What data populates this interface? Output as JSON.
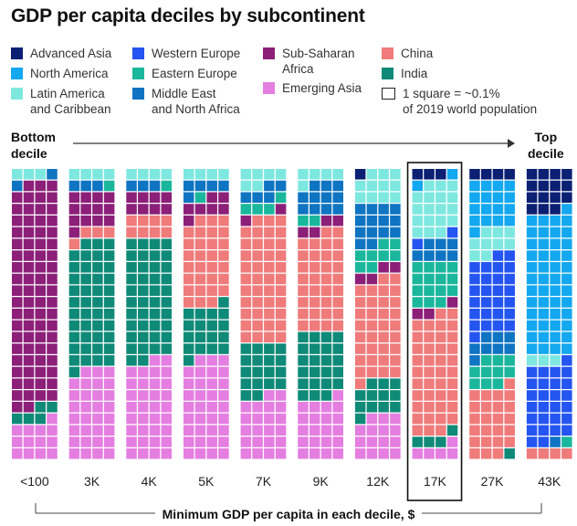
{
  "title": "GDP per capita deciles by subcontinent",
  "legend": [
    {
      "key": "A",
      "label": "Advanced Asia",
      "color": "#0b1f73"
    },
    {
      "key": "W",
      "label": "Western Europe",
      "color": "#2455f0"
    },
    {
      "key": "S",
      "label": "Sub-Saharan\nAfrica",
      "color": "#8c1f78"
    },
    {
      "key": "C",
      "label": "China",
      "color": "#ef7b7b"
    },
    {
      "key": "N",
      "label": "North America",
      "color": "#13a8ef"
    },
    {
      "key": "E",
      "label": "Eastern Europe",
      "color": "#1ab79c"
    },
    {
      "key": "I",
      "label": "India",
      "color": "#0f8a78"
    },
    {
      "key": "L",
      "label": "Latin America\nand Caribbean",
      "color": "#7ee8e0"
    },
    {
      "key": "M",
      "label": "Middle East\nand North Africa",
      "color": "#0f74c2"
    },
    {
      "key": "G",
      "label": "Emerging Asia",
      "color": "#e47ee0"
    }
  ],
  "legend_note": "1 square = ~0.1%\nof 2019 world population",
  "bottom_label": "Bottom\ndecile",
  "top_label": "Top\ndecile",
  "chart_data": {
    "type": "waffle",
    "unit": "1 square = ~0.1% of 2019 world population",
    "xlabel": "Minimum GDP per capita in each decile, $",
    "categories": [
      "<100",
      "3K",
      "4K",
      "5K",
      "7K",
      "9K",
      "12K",
      "17K",
      "27K",
      "43K"
    ],
    "highlighted": "17K",
    "grid": {
      "columns": 4,
      "rows": 25
    },
    "deciles": [
      {
        "label": "<100",
        "counts": {
          "L": 3,
          "M": 2,
          "S": 77,
          "I": 5,
          "G": 13
        }
      },
      {
        "label": "3K",
        "counts": {
          "L": 4,
          "M": 3,
          "E": 1,
          "S": 13,
          "C": 4,
          "I": 44,
          "G": 31
        }
      },
      {
        "label": "4K",
        "counts": {
          "L": 4,
          "M": 3,
          "E": 1,
          "S": 8,
          "C": 8,
          "I": 42,
          "G": 34
        }
      },
      {
        "label": "5K",
        "counts": {
          "L": 4,
          "M": 5,
          "E": 1,
          "S": 7,
          "C": 30,
          "I": 18,
          "G": 35
        }
      },
      {
        "label": "7K",
        "counts": {
          "L": 6,
          "M": 5,
          "E": 4,
          "S": 2,
          "C": 43,
          "I": 18,
          "G": 22
        }
      },
      {
        "label": "9K",
        "counts": {
          "L": 5,
          "M": 11,
          "E": 2,
          "S": 4,
          "C": 34,
          "I": 23,
          "G": 21
        }
      },
      {
        "label": "12K",
        "counts": {
          "A": 1,
          "L": 11,
          "M": 14,
          "E": 8,
          "S": 4,
          "C": 35,
          "I": 12,
          "G": 15
        }
      },
      {
        "label": "17K",
        "counts": {
          "A": 3,
          "N": 2,
          "L": 18,
          "W": 2,
          "M": 7,
          "E": 15,
          "S": 3,
          "C": 41,
          "I": 4,
          "G": 5
        }
      },
      {
        "label": "27K",
        "counts": {
          "A": 4,
          "N": 17,
          "L": 9,
          "W": 27,
          "M": 8,
          "E": 10,
          "C": 24,
          "I": 1
        }
      },
      {
        "label": "43K",
        "counts": {
          "A": 15,
          "N": 49,
          "L": 3,
          "W": 27,
          "E": 1,
          "M": 1,
          "C": 4
        }
      }
    ]
  }
}
